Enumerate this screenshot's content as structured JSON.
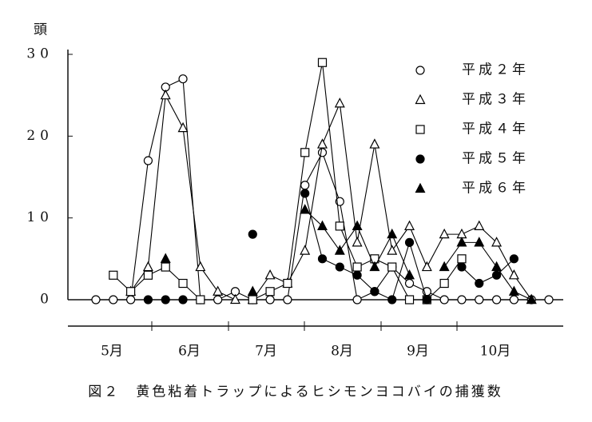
{
  "chart_data": {
    "type": "line",
    "y_label": "頭",
    "caption": "図２　黄色粘着トラップによるヒシモンヨコバイの捕獲数",
    "categories": [
      null,
      null,
      null,
      null,
      null,
      null,
      null,
      null,
      null,
      null,
      null,
      null,
      null,
      null,
      null,
      null,
      null,
      null,
      null,
      null,
      null,
      null,
      null,
      null,
      null,
      null,
      null
    ],
    "months": [
      "5月",
      "6月",
      "7月",
      "8月",
      "9月",
      "10月"
    ],
    "ylim": [
      0,
      30
    ],
    "yticks": [
      0,
      10,
      20,
      30
    ],
    "grid": false,
    "legend": "upper right",
    "series": [
      {
        "name": "平成２年",
        "color": "#000",
        "marker": "circle",
        "filled": false,
        "values": [
          0,
          0,
          0,
          17,
          26,
          27,
          0,
          0,
          1,
          0,
          0,
          0,
          14,
          18,
          12,
          0,
          1,
          4,
          2,
          1,
          0,
          0,
          0,
          0,
          0,
          0,
          0
        ]
      },
      {
        "name": "平成３年",
        "color": "#000",
        "marker": "triangle",
        "filled": false,
        "values": [
          null,
          null,
          1,
          4,
          25,
          21,
          4,
          1,
          0,
          0,
          3,
          2,
          6,
          19,
          24,
          7,
          19,
          6,
          9,
          4,
          8,
          8,
          9,
          7,
          3,
          0,
          null
        ]
      },
      {
        "name": "平成４年",
        "color": "#000",
        "marker": "square",
        "filled": false,
        "values": [
          null,
          3,
          1,
          3,
          4,
          2,
          0,
          null,
          null,
          0,
          1,
          2,
          18,
          29,
          9,
          4,
          5,
          4,
          0,
          0,
          2,
          5,
          null,
          null,
          null,
          null,
          null
        ]
      },
      {
        "name": "平成５年",
        "color": "#000",
        "marker": "circle",
        "filled": true,
        "values": [
          null,
          null,
          null,
          0,
          0,
          0,
          null,
          null,
          null,
          8,
          null,
          null,
          13,
          5,
          4,
          3,
          1,
          0,
          7,
          0,
          null,
          4,
          2,
          3,
          5,
          null,
          null
        ]
      },
      {
        "name": "平成６年",
        "color": "#000",
        "marker": "triangle",
        "filled": true,
        "values": [
          null,
          null,
          null,
          null,
          5,
          null,
          null,
          null,
          null,
          1,
          null,
          null,
          11,
          9,
          6,
          9,
          4,
          8,
          3,
          null,
          4,
          7,
          7,
          4,
          1,
          0,
          null
        ]
      }
    ]
  }
}
